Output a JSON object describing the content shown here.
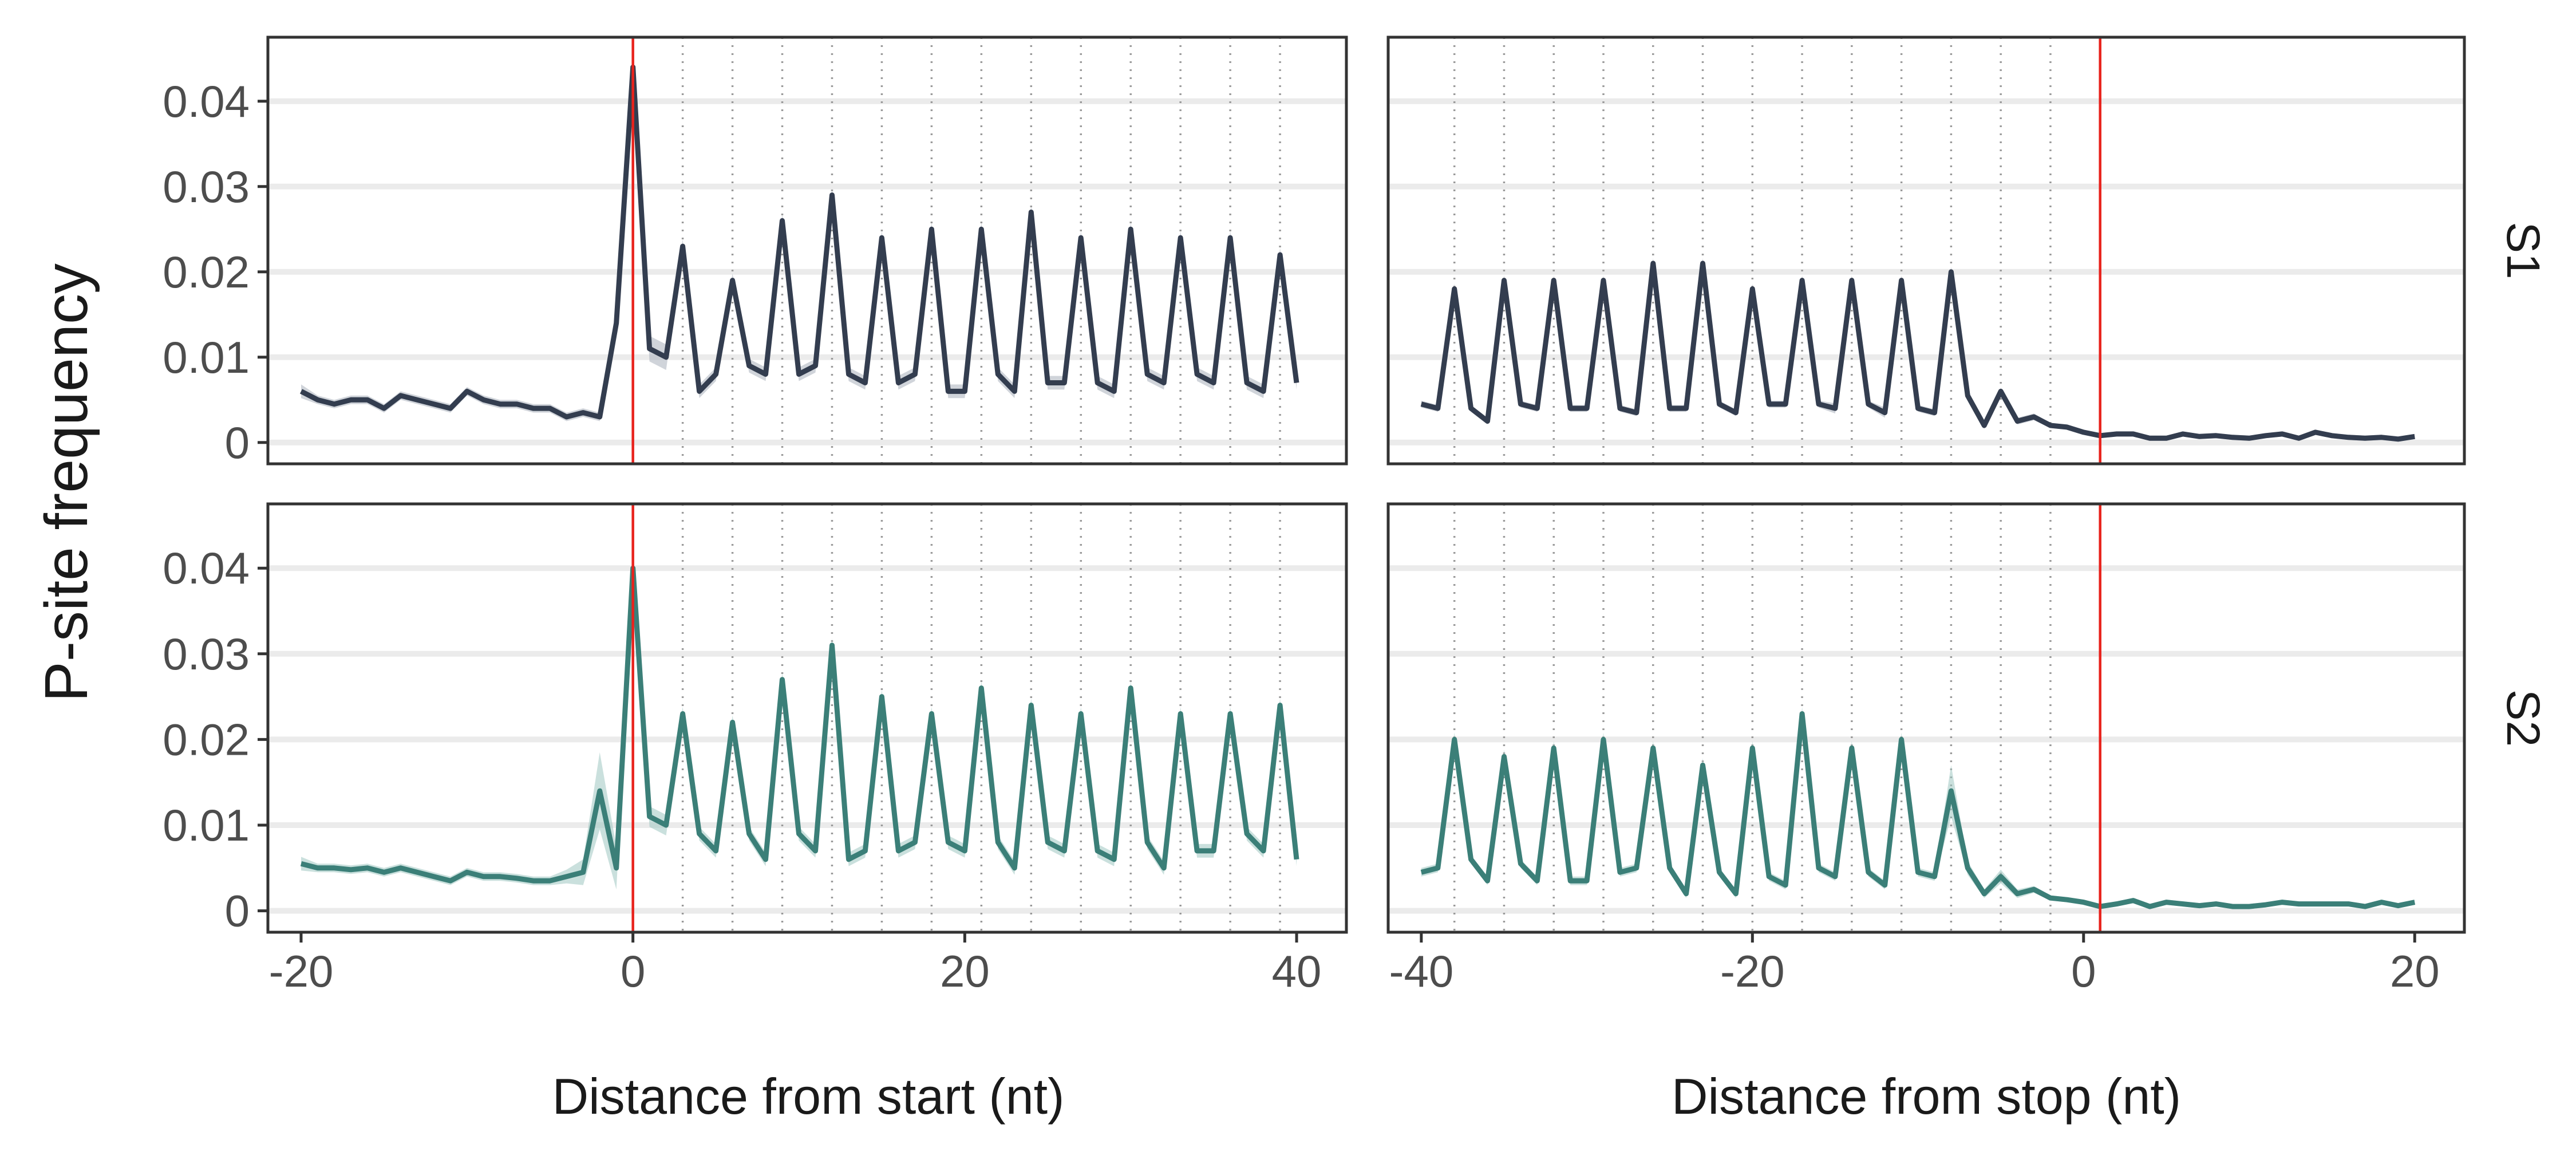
{
  "chart_data": {
    "type": "line",
    "ylabel": "P-site frequency",
    "yticks": [
      0,
      0.01,
      0.02,
      0.03,
      0.04
    ],
    "ytick_labels": [
      "0",
      "0.01",
      "0.02",
      "0.03",
      "0.04"
    ],
    "ylim": [
      -0.0025,
      0.0475
    ],
    "grid": "horizontal",
    "facets": {
      "columns": [
        {
          "xlabel": "Distance from start (nt)",
          "xlim": [
            -22,
            43
          ],
          "xticks": [
            -20,
            0,
            20,
            40
          ],
          "xtick_labels": [
            "-20",
            "0",
            "20",
            "40"
          ],
          "x": [
            -20,
            -19,
            -18,
            -17,
            -16,
            -15,
            -14,
            -13,
            -12,
            -11,
            -10,
            -9,
            -8,
            -7,
            -6,
            -5,
            -4,
            -3,
            -2,
            -1,
            0,
            1,
            2,
            3,
            4,
            5,
            6,
            7,
            8,
            9,
            10,
            11,
            12,
            13,
            14,
            15,
            16,
            17,
            18,
            19,
            20,
            21,
            22,
            23,
            24,
            25,
            26,
            27,
            28,
            29,
            30,
            31,
            32,
            33,
            34,
            35,
            36,
            37,
            38,
            39,
            40
          ],
          "reference_line": 0,
          "frame_lines": [
            3,
            6,
            9,
            12,
            15,
            18,
            21,
            24,
            27,
            30,
            33,
            36,
            39
          ]
        },
        {
          "xlabel": "Distance from stop (nt)",
          "xlim": [
            -42,
            23
          ],
          "xticks": [
            -40,
            -20,
            0,
            20
          ],
          "xtick_labels": [
            "-40",
            "-20",
            "0",
            "20"
          ],
          "x": [
            -40,
            -39,
            -38,
            -37,
            -36,
            -35,
            -34,
            -33,
            -32,
            -31,
            -30,
            -29,
            -28,
            -27,
            -26,
            -25,
            -24,
            -23,
            -22,
            -21,
            -20,
            -19,
            -18,
            -17,
            -16,
            -15,
            -14,
            -13,
            -12,
            -11,
            -10,
            -9,
            -8,
            -7,
            -6,
            -5,
            -4,
            -3,
            -2,
            -1,
            0,
            1,
            2,
            3,
            4,
            5,
            6,
            7,
            8,
            9,
            10,
            11,
            12,
            13,
            14,
            15,
            16,
            17,
            18,
            19,
            20
          ],
          "reference_line": 1,
          "frame_lines": [
            -38,
            -35,
            -32,
            -29,
            -26,
            -23,
            -20,
            -17,
            -14,
            -11,
            -8,
            -5,
            -2
          ]
        }
      ],
      "rows": [
        {
          "label": "S1",
          "color": "#333d4f",
          "ribbon": "#a9b0bc"
        },
        {
          "label": "S2",
          "color": "#3b7f78",
          "ribbon": "#9fc6c1"
        }
      ]
    },
    "series": [
      {
        "name": "S1",
        "facet": "start",
        "values": [
          0.006,
          0.005,
          0.0045,
          0.005,
          0.005,
          0.004,
          0.0055,
          0.005,
          0.0045,
          0.004,
          0.006,
          0.005,
          0.0045,
          0.0045,
          0.004,
          0.004,
          0.003,
          0.0035,
          0.003,
          0.014,
          0.044,
          0.011,
          0.01,
          0.023,
          0.006,
          0.008,
          0.019,
          0.009,
          0.008,
          0.026,
          0.008,
          0.009,
          0.029,
          0.008,
          0.007,
          0.024,
          0.007,
          0.008,
          0.025,
          0.006,
          0.006,
          0.025,
          0.008,
          0.006,
          0.027,
          0.007,
          0.007,
          0.024,
          0.007,
          0.006,
          0.025,
          0.008,
          0.007,
          0.024,
          0.008,
          0.007,
          0.024,
          0.007,
          0.006,
          0.022,
          0.007
        ],
        "ribbon_halfwidth": [
          0.0008,
          0.0005,
          0.0005,
          0.0005,
          0.0005,
          0.0005,
          0.0005,
          0.0005,
          0.0005,
          0.0005,
          0.0005,
          0.0005,
          0.0005,
          0.0005,
          0.0005,
          0.0005,
          0.0005,
          0.0005,
          0.0005,
          0.0008,
          0.0008,
          0.0015,
          0.0015,
          0.0008,
          0.0008,
          0.0008,
          0.0008,
          0.0008,
          0.0008,
          0.0008,
          0.0008,
          0.0008,
          0.0008,
          0.0008,
          0.0008,
          0.0008,
          0.0008,
          0.0008,
          0.0008,
          0.0008,
          0.0008,
          0.0008,
          0.0008,
          0.0008,
          0.0008,
          0.0008,
          0.0008,
          0.0008,
          0.0008,
          0.0008,
          0.0008,
          0.0008,
          0.0008,
          0.0008,
          0.0008,
          0.0008,
          0.0008,
          0.0008,
          0.0008,
          0.0008,
          0.0008
        ]
      },
      {
        "name": "S1",
        "facet": "stop",
        "values": [
          0.0045,
          0.004,
          0.018,
          0.004,
          0.0025,
          0.019,
          0.0045,
          0.004,
          0.019,
          0.004,
          0.004,
          0.019,
          0.004,
          0.0035,
          0.021,
          0.004,
          0.004,
          0.021,
          0.0045,
          0.0035,
          0.018,
          0.0045,
          0.0045,
          0.019,
          0.0045,
          0.004,
          0.019,
          0.0045,
          0.0035,
          0.019,
          0.004,
          0.0035,
          0.02,
          0.0055,
          0.002,
          0.006,
          0.0025,
          0.003,
          0.002,
          0.0018,
          0.0012,
          0.0008,
          0.001,
          0.001,
          0.0005,
          0.0005,
          0.001,
          0.0007,
          0.0008,
          0.0006,
          0.0005,
          0.0008,
          0.001,
          0.0005,
          0.0012,
          0.0008,
          0.0006,
          0.0005,
          0.0006,
          0.0004,
          0.0007
        ],
        "ribbon_halfwidth": [
          0.0004,
          0.0004,
          0.0006,
          0.0004,
          0.0004,
          0.0006,
          0.0004,
          0.0004,
          0.0006,
          0.0004,
          0.0004,
          0.0006,
          0.0004,
          0.0004,
          0.0006,
          0.0004,
          0.0004,
          0.0006,
          0.0004,
          0.0004,
          0.0006,
          0.0004,
          0.0004,
          0.0006,
          0.0004,
          0.0006,
          0.0006,
          0.0004,
          0.0006,
          0.0006,
          0.0004,
          0.0004,
          0.0006,
          0.0004,
          0.0004,
          0.0004,
          0.0004,
          0.0004,
          0.0003,
          0.0003,
          0.0003,
          0.0003,
          0.0003,
          0.0003,
          0.0003,
          0.0003,
          0.0003,
          0.0003,
          0.0003,
          0.0003,
          0.0003,
          0.0003,
          0.0003,
          0.0003,
          0.0003,
          0.0003,
          0.0003,
          0.0003,
          0.0003,
          0.0003,
          0.0003
        ]
      },
      {
        "name": "S2",
        "facet": "start",
        "values": [
          0.0055,
          0.005,
          0.005,
          0.0048,
          0.005,
          0.0045,
          0.005,
          0.0045,
          0.004,
          0.0035,
          0.0045,
          0.004,
          0.004,
          0.0038,
          0.0035,
          0.0035,
          0.004,
          0.0045,
          0.014,
          0.005,
          0.04,
          0.011,
          0.01,
          0.023,
          0.009,
          0.007,
          0.022,
          0.009,
          0.006,
          0.027,
          0.009,
          0.007,
          0.031,
          0.006,
          0.007,
          0.025,
          0.007,
          0.008,
          0.023,
          0.008,
          0.007,
          0.026,
          0.008,
          0.005,
          0.024,
          0.008,
          0.007,
          0.023,
          0.007,
          0.006,
          0.026,
          0.008,
          0.005,
          0.023,
          0.007,
          0.007,
          0.023,
          0.009,
          0.007,
          0.024,
          0.006
        ],
        "ribbon_halfwidth": [
          0.0008,
          0.0005,
          0.0005,
          0.0005,
          0.0005,
          0.0005,
          0.0005,
          0.0005,
          0.0005,
          0.0005,
          0.0005,
          0.0005,
          0.0005,
          0.0005,
          0.0005,
          0.0005,
          0.0008,
          0.0015,
          0.0045,
          0.0025,
          0.001,
          0.0012,
          0.0012,
          0.0008,
          0.0008,
          0.0008,
          0.0008,
          0.0008,
          0.0008,
          0.0008,
          0.0008,
          0.0008,
          0.0008,
          0.0008,
          0.0008,
          0.0008,
          0.0008,
          0.0008,
          0.0008,
          0.0008,
          0.0008,
          0.0008,
          0.0008,
          0.0008,
          0.0008,
          0.0008,
          0.0008,
          0.0008,
          0.0008,
          0.0008,
          0.0008,
          0.0008,
          0.0008,
          0.0008,
          0.0008,
          0.0008,
          0.0008,
          0.0008,
          0.0008,
          0.0008,
          0.0008
        ]
      },
      {
        "name": "S2",
        "facet": "stop",
        "values": [
          0.0045,
          0.005,
          0.02,
          0.006,
          0.0035,
          0.018,
          0.0055,
          0.0035,
          0.019,
          0.0035,
          0.0035,
          0.02,
          0.0045,
          0.005,
          0.019,
          0.005,
          0.002,
          0.017,
          0.0045,
          0.002,
          0.019,
          0.004,
          0.003,
          0.023,
          0.005,
          0.004,
          0.019,
          0.0045,
          0.003,
          0.02,
          0.0045,
          0.004,
          0.014,
          0.005,
          0.002,
          0.004,
          0.002,
          0.0025,
          0.0015,
          0.0013,
          0.001,
          0.0005,
          0.0008,
          0.0012,
          0.0005,
          0.001,
          0.0008,
          0.0006,
          0.0008,
          0.0005,
          0.0005,
          0.0007,
          0.001,
          0.0008,
          0.0008,
          0.0008,
          0.0008,
          0.0005,
          0.001,
          0.0006,
          0.001
        ],
        "ribbon_halfwidth": [
          0.0005,
          0.0005,
          0.0008,
          0.0005,
          0.0005,
          0.0008,
          0.0005,
          0.0005,
          0.0008,
          0.0005,
          0.0005,
          0.0008,
          0.0005,
          0.0005,
          0.0008,
          0.0005,
          0.0005,
          0.0008,
          0.0005,
          0.0005,
          0.0008,
          0.0005,
          0.0005,
          0.0008,
          0.0005,
          0.0005,
          0.0008,
          0.0005,
          0.0005,
          0.0008,
          0.0005,
          0.0005,
          0.003,
          0.0008,
          0.0005,
          0.0008,
          0.0005,
          0.0004,
          0.0003,
          0.0003,
          0.0003,
          0.0003,
          0.0003,
          0.0003,
          0.0003,
          0.0003,
          0.0003,
          0.0003,
          0.0003,
          0.0003,
          0.0003,
          0.0003,
          0.0003,
          0.0003,
          0.0003,
          0.0003,
          0.0003,
          0.0003,
          0.0003,
          0.0003,
          0.0003
        ]
      }
    ]
  }
}
